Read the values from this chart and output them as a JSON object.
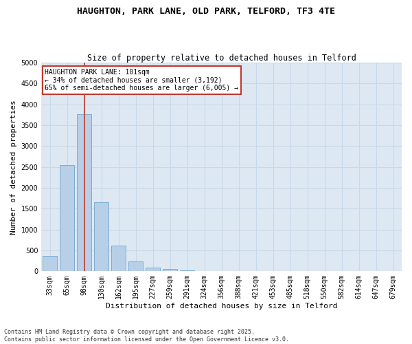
{
  "title1": "HAUGHTON, PARK LANE, OLD PARK, TELFORD, TF3 4TE",
  "title2": "Size of property relative to detached houses in Telford",
  "xlabel": "Distribution of detached houses by size in Telford",
  "ylabel": "Number of detached properties",
  "categories": [
    "33sqm",
    "65sqm",
    "98sqm",
    "130sqm",
    "162sqm",
    "195sqm",
    "227sqm",
    "259sqm",
    "291sqm",
    "324sqm",
    "356sqm",
    "388sqm",
    "421sqm",
    "453sqm",
    "485sqm",
    "518sqm",
    "550sqm",
    "582sqm",
    "614sqm",
    "647sqm",
    "679sqm"
  ],
  "values": [
    375,
    2550,
    3760,
    1650,
    620,
    230,
    95,
    50,
    30,
    0,
    0,
    0,
    0,
    0,
    0,
    0,
    0,
    0,
    0,
    0,
    0
  ],
  "bar_color": "#b8cfe8",
  "bar_edge_color": "#7aadd4",
  "vline_color": "#c0392b",
  "vline_pos": 2.0,
  "annotation_text": "HAUGHTON PARK LANE: 101sqm\n← 34% of detached houses are smaller (3,192)\n65% of semi-detached houses are larger (6,005) →",
  "annotation_box_color": "#c0392b",
  "ylim": [
    0,
    5000
  ],
  "yticks": [
    0,
    500,
    1000,
    1500,
    2000,
    2500,
    3000,
    3500,
    4000,
    4500,
    5000
  ],
  "grid_color": "#c8d8e8",
  "background_color": "#dde8f3",
  "footnote": "Contains HM Land Registry data © Crown copyright and database right 2025.\nContains public sector information licensed under the Open Government Licence v3.0.",
  "title1_fontsize": 9.5,
  "title2_fontsize": 8.5,
  "xlabel_fontsize": 8,
  "ylabel_fontsize": 8,
  "tick_fontsize": 7,
  "annot_fontsize": 7,
  "footnote_fontsize": 6
}
